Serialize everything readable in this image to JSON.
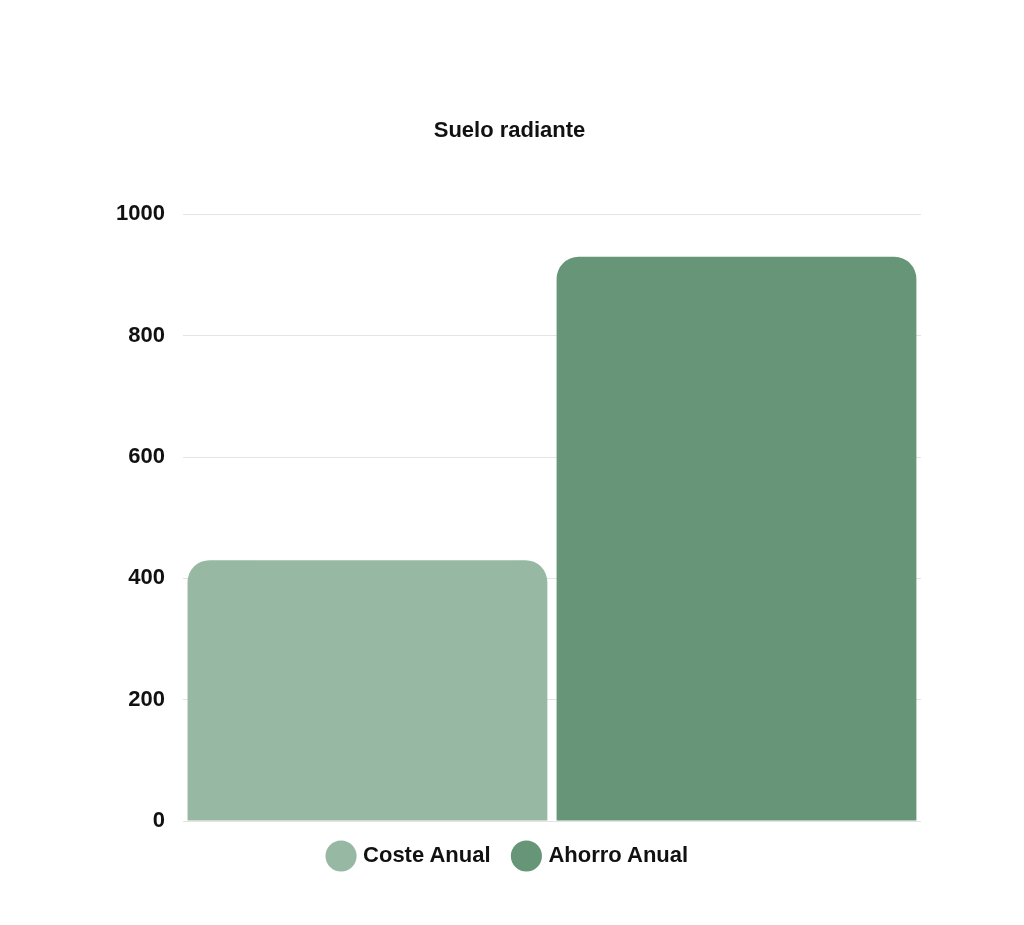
{
  "chart_data": {
    "type": "bar",
    "title": "Suelo radiante",
    "categories": [
      null
    ],
    "series": [
      {
        "name": "Coste Anual",
        "color": "#97b9a3",
        "values": [
          430
        ]
      },
      {
        "name": "Ahorro Anual",
        "color": "#669677",
        "values": [
          930
        ]
      }
    ],
    "ylim": [
      0,
      1000
    ],
    "yticks": [
      0,
      200,
      400,
      600,
      800,
      1000
    ],
    "grid": "y",
    "legend": "bottom"
  }
}
